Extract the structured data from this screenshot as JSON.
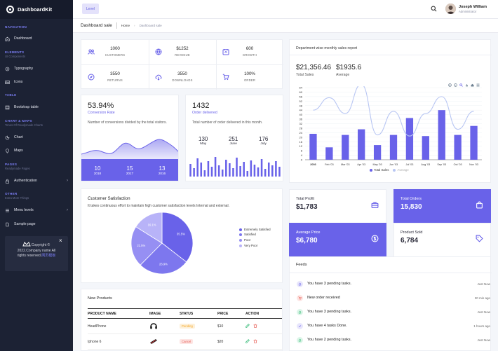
{
  "app": {
    "name": "DashboardKit"
  },
  "colors": {
    "primary": "#6962e9",
    "sidebar_bg": "#1c2234",
    "accent_light": "#e4e2fb"
  },
  "sidebar": {
    "sections": [
      {
        "title": "NAVIGATION",
        "subtitle": ""
      },
      {
        "title": "ELEMENTS",
        "subtitle": "UI Components"
      },
      {
        "title": "TABLE",
        "subtitle": ""
      },
      {
        "title": "CHART & MAPS",
        "subtitle": "Tones Of Readymade Charts"
      },
      {
        "title": "PAGES",
        "subtitle": "Readymade Pages"
      },
      {
        "title": "OTHER",
        "subtitle": "Extra More Things"
      }
    ],
    "items": [
      {
        "label": "Dashboard",
        "icon": "home-icon"
      },
      {
        "label": "Typography",
        "icon": "typography-icon"
      },
      {
        "label": "Icons",
        "icon": "icons-icon"
      },
      {
        "label": "Bootstrap table",
        "icon": "table-icon"
      },
      {
        "label": "Chart",
        "icon": "chart-icon"
      },
      {
        "label": "Maps",
        "icon": "map-icon"
      },
      {
        "label": "Authentication",
        "icon": "lock-icon"
      },
      {
        "label": "Menu levels",
        "icon": "menu-icon"
      },
      {
        "label": "Sample page",
        "icon": "page-icon"
      }
    ],
    "promo": {
      "line1": "Copyright ©",
      "line2": "2022.Company name All",
      "line3": "rights reserved.",
      "link": "网页模板"
    }
  },
  "topbar": {
    "level_button": "Level",
    "user_name": "Joseph William",
    "user_role": "Administrator"
  },
  "breadcrumb": {
    "title": "Dashboard sale",
    "home": "Home",
    "current": "Dashboard sale"
  },
  "stats": [
    {
      "value": "1000",
      "label": "CUSTOMERS",
      "icon": "users-icon"
    },
    {
      "value": "$1252",
      "label": "REVENUE",
      "icon": "globe-icon"
    },
    {
      "value": "600",
      "label": "GROWTH",
      "icon": "calendar-icon"
    },
    {
      "value": "3550",
      "label": "RETURNS",
      "icon": "compass-icon"
    },
    {
      "value": "3550",
      "label": "DOWNLOADS",
      "icon": "cloud-download-icon"
    },
    {
      "value": "100%",
      "label": "ORDER",
      "icon": "cart-icon"
    }
  ],
  "conversion": {
    "value": "53.94%",
    "label": "Conversion Rate",
    "desc": "Number of conversions divided by the total visitors.",
    "footer": [
      {
        "v": "10",
        "l": "2018"
      },
      {
        "v": "15",
        "l": "2017"
      },
      {
        "v": "13",
        "l": "2016"
      }
    ]
  },
  "orders": {
    "value": "1432",
    "label": "Order delivered",
    "desc": "Total number of order delivered in this month.",
    "stats": [
      {
        "v": "130",
        "l": "May"
      },
      {
        "v": "251",
        "l": "June"
      },
      {
        "v": "176",
        "l": "July"
      }
    ]
  },
  "sales_report": {
    "title": "Department wise monthly sales report",
    "total_sales_value": "$21,356.46",
    "total_sales_label": "Total Sales",
    "average_value": "$1935.6",
    "average_label": "Average"
  },
  "chart_data": {
    "type": "bar",
    "categories": [
      "2003",
      "Feb '03",
      "Mar '03",
      "Apr '03",
      "May '03",
      "Jun '03",
      "Jul '03",
      "Aug '03",
      "Sep '03",
      "Oct '03",
      "Nov '03"
    ],
    "series": [
      {
        "name": "Total Sales",
        "type": "bar",
        "values": [
          23,
          11,
          22,
          27,
          13,
          22,
          37,
          21,
          44,
          22,
          30
        ]
      },
      {
        "name": "Average",
        "type": "line",
        "values": [
          44,
          55,
          41,
          67,
          22,
          43,
          21,
          41,
          56,
          27,
          43
        ]
      }
    ],
    "yticks": [
      "64",
      "60",
      "56",
      "52",
      "48",
      "44",
      "40",
      "36",
      "32",
      "28",
      "24",
      "20",
      "16",
      "12",
      "8",
      "4",
      "0"
    ],
    "ylim": [
      0,
      64
    ],
    "legend": "bottom"
  },
  "tiles": [
    {
      "label": "Total Profit",
      "value": "$1,783",
      "icon": "briefcase-icon",
      "style": "light"
    },
    {
      "label": "Total Orders",
      "value": "15,830",
      "icon": "bag-icon",
      "style": "dark"
    },
    {
      "label": "Average Price",
      "value": "$6,780",
      "icon": "dollar-icon",
      "style": "dark"
    },
    {
      "label": "Product Sold",
      "value": "6,784",
      "icon": "tag-icon",
      "style": "light"
    }
  ],
  "satisfaction": {
    "title": "Customer Satisfaction",
    "desc": "It takes continuous effort to maintain high customer satisfaction levels Internal and external.",
    "slices": [
      {
        "name": "Extremely Satisfied",
        "value": 35.5,
        "label": "35.5%",
        "color": "#6962e9"
      },
      {
        "name": "Satisfied",
        "value": 26.9,
        "label": "26.9%",
        "color": "#7d77ee"
      },
      {
        "name": "Poor",
        "value": 21.5,
        "label": "21.5%",
        "color": "#968ff3"
      },
      {
        "name": "Very Poor",
        "value": 16.1,
        "label": "16.1%",
        "color": "#b8b3f8"
      }
    ]
  },
  "feeds": {
    "title": "Feeds",
    "items": [
      {
        "text": "You have 3 pending tasks.",
        "time": "Just Now",
        "icon": "bell-icon",
        "color": "#6962e9",
        "bg": "#e8e6fc"
      },
      {
        "text": "New order received",
        "time": "30 min ago",
        "icon": "cart-icon",
        "color": "#e5534b",
        "bg": "#fde5e3"
      },
      {
        "text": "You have 3 pending tasks.",
        "time": "Just Now",
        "icon": "bell-icon",
        "color": "#2eb872",
        "bg": "#dcf5e8"
      },
      {
        "text": "You have 4 tasks Done.",
        "time": "1 hours ago",
        "icon": "check-icon",
        "color": "#6962e9",
        "bg": "#e8e6fc"
      },
      {
        "text": "You have 2 pending tasks.",
        "time": "Just Now",
        "icon": "bell-icon",
        "color": "#2eb872",
        "bg": "#dcf5e8"
      }
    ]
  },
  "products": {
    "title": "New Products",
    "headers": [
      "PRODUCT NAME",
      "IMAGE",
      "STATUS",
      "PRICE",
      "ACTION"
    ],
    "rows": [
      {
        "name": "HeadPhone",
        "image": "headphone-image",
        "status": "Pending",
        "status_color": "#f5a623",
        "status_bg": "#fdf0d9",
        "price": "$10"
      },
      {
        "name": "Iphone 6",
        "image": "phone-image",
        "status": "Cancel",
        "status_color": "#e5534b",
        "status_bg": "#fde5e3",
        "price": "$20"
      }
    ]
  }
}
